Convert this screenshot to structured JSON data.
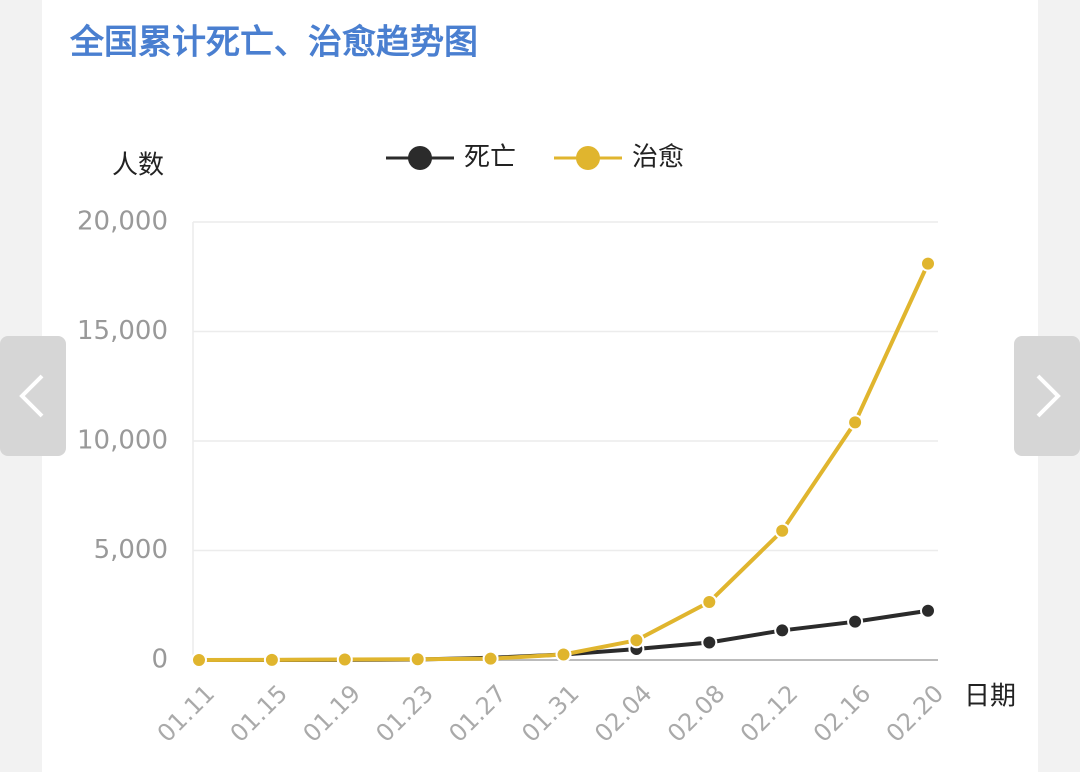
{
  "chart_data": {
    "type": "line",
    "title": "全国累计死亡、治愈趋势图",
    "y_label": "人数",
    "x_label": "日期",
    "categories": [
      "01.11",
      "01.15",
      "01.19",
      "01.23",
      "01.27",
      "01.31",
      "02.04",
      "02.08",
      "02.12",
      "02.16",
      "02.20"
    ],
    "series": [
      {
        "name": "死亡",
        "color": "#2b2b2b",
        "values": [
          1,
          2,
          3,
          25,
          100,
          250,
          500,
          800,
          1350,
          1750,
          2250
        ]
      },
      {
        "name": "治愈",
        "color": "#e0b52e",
        "values": [
          0,
          5,
          25,
          35,
          60,
          250,
          900,
          2650,
          5900,
          10850,
          18100
        ]
      }
    ],
    "ylim": [
      0,
      20000
    ],
    "yticks": [
      0,
      {
        "value": 5000,
        "label": "5,000"
      },
      {
        "value": 10000,
        "label": "10,000"
      },
      {
        "value": 15000,
        "label": "15,000"
      },
      {
        "value": 20000,
        "label": "20,000"
      }
    ],
    "grid": true,
    "legend": "top"
  }
}
